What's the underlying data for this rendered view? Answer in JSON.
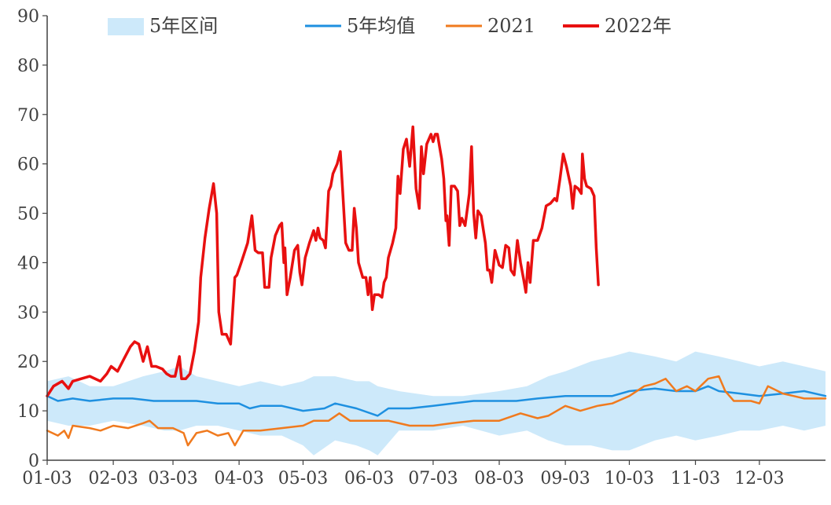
{
  "chart_data": {
    "type": "line",
    "title": "",
    "xlabel": "",
    "ylabel": "",
    "ylim": [
      0,
      90
    ],
    "yticks": [
      0,
      10,
      20,
      30,
      40,
      50,
      60,
      70,
      80,
      90
    ],
    "xlim": [
      0,
      365
    ],
    "xticks": [
      {
        "label": "01-03",
        "day": 0
      },
      {
        "label": "02-03",
        "day": 31
      },
      {
        "label": "03-03",
        "day": 59
      },
      {
        "label": "04-03",
        "day": 90
      },
      {
        "label": "05-03",
        "day": 120
      },
      {
        "label": "06-03",
        "day": 151
      },
      {
        "label": "07-03",
        "day": 181
      },
      {
        "label": "08-03",
        "day": 212
      },
      {
        "label": "09-03",
        "day": 243
      },
      {
        "label": "10-03",
        "day": 273
      },
      {
        "label": "11-03",
        "day": 304
      },
      {
        "label": "12-03",
        "day": 334
      }
    ],
    "grid": false,
    "legend": {
      "position": "top",
      "entries": [
        {
          "name": "5年区间",
          "type": "band",
          "color": "#cde9fa"
        },
        {
          "name": "5年均值",
          "type": "line",
          "color": "#1e90e0"
        },
        {
          "name": "2021",
          "type": "line",
          "color": "#f07a1e"
        },
        {
          "name": "2022年",
          "type": "line",
          "color": "#e81010"
        }
      ]
    },
    "band": {
      "name": "5年区间",
      "color": "#cde9fa",
      "points": [
        [
          0,
          8,
          16
        ],
        [
          10,
          7,
          17
        ],
        [
          20,
          7,
          15
        ],
        [
          31,
          8,
          15
        ],
        [
          45,
          7,
          17
        ],
        [
          55,
          6,
          18
        ],
        [
          62,
          6,
          19
        ],
        [
          70,
          7,
          17
        ],
        [
          80,
          7,
          16
        ],
        [
          90,
          6,
          15
        ],
        [
          100,
          5,
          16
        ],
        [
          110,
          5,
          15
        ],
        [
          120,
          3,
          16
        ],
        [
          125,
          1,
          17
        ],
        [
          135,
          4,
          17
        ],
        [
          145,
          3,
          16
        ],
        [
          151,
          2,
          16
        ],
        [
          155,
          1,
          15
        ],
        [
          165,
          6,
          14
        ],
        [
          181,
          6,
          13
        ],
        [
          195,
          7,
          13
        ],
        [
          212,
          5,
          14
        ],
        [
          225,
          6,
          15
        ],
        [
          235,
          4,
          17
        ],
        [
          243,
          3,
          18
        ],
        [
          255,
          3,
          20
        ],
        [
          265,
          2,
          21
        ],
        [
          273,
          2,
          22
        ],
        [
          285,
          4,
          21
        ],
        [
          295,
          5,
          20
        ],
        [
          304,
          4,
          22
        ],
        [
          315,
          5,
          21
        ],
        [
          325,
          6,
          20
        ],
        [
          334,
          6,
          19
        ],
        [
          345,
          7,
          20
        ],
        [
          355,
          6,
          19
        ],
        [
          365,
          7,
          18
        ]
      ]
    },
    "series": [
      {
        "name": "5年均值",
        "color": "#1e90e0",
        "points": [
          [
            0,
            13
          ],
          [
            5,
            12
          ],
          [
            12,
            12.5
          ],
          [
            20,
            12
          ],
          [
            31,
            12.5
          ],
          [
            40,
            12.5
          ],
          [
            50,
            12
          ],
          [
            59,
            12
          ],
          [
            70,
            12
          ],
          [
            80,
            11.5
          ],
          [
            90,
            11.5
          ],
          [
            95,
            10.5
          ],
          [
            100,
            11
          ],
          [
            110,
            11
          ],
          [
            120,
            10
          ],
          [
            130,
            10.5
          ],
          [
            135,
            11.5
          ],
          [
            145,
            10.5
          ],
          [
            155,
            9
          ],
          [
            160,
            10.5
          ],
          [
            170,
            10.5
          ],
          [
            181,
            11
          ],
          [
            190,
            11.5
          ],
          [
            200,
            12
          ],
          [
            212,
            12
          ],
          [
            220,
            12
          ],
          [
            230,
            12.5
          ],
          [
            243,
            13
          ],
          [
            255,
            13
          ],
          [
            265,
            13
          ],
          [
            273,
            14
          ],
          [
            285,
            14.5
          ],
          [
            295,
            14
          ],
          [
            304,
            14
          ],
          [
            310,
            15
          ],
          [
            315,
            14
          ],
          [
            325,
            13.5
          ],
          [
            334,
            13
          ],
          [
            345,
            13.5
          ],
          [
            355,
            14
          ],
          [
            365,
            13
          ]
        ]
      },
      {
        "name": "2021",
        "color": "#f07a1e",
        "points": [
          [
            0,
            6
          ],
          [
            5,
            5
          ],
          [
            8,
            6
          ],
          [
            10,
            4.5
          ],
          [
            12,
            7
          ],
          [
            20,
            6.5
          ],
          [
            25,
            6
          ],
          [
            31,
            7
          ],
          [
            38,
            6.5
          ],
          [
            45,
            7.5
          ],
          [
            48,
            8
          ],
          [
            52,
            6.5
          ],
          [
            59,
            6.5
          ],
          [
            64,
            5.5
          ],
          [
            66,
            3
          ],
          [
            70,
            5.5
          ],
          [
            75,
            6
          ],
          [
            80,
            5
          ],
          [
            85,
            5.5
          ],
          [
            88,
            3
          ],
          [
            92,
            6
          ],
          [
            100,
            6
          ],
          [
            110,
            6.5
          ],
          [
            120,
            7
          ],
          [
            125,
            8
          ],
          [
            132,
            8
          ],
          [
            137,
            9.5
          ],
          [
            142,
            8
          ],
          [
            151,
            8
          ],
          [
            160,
            8
          ],
          [
            170,
            7
          ],
          [
            181,
            7
          ],
          [
            190,
            7.5
          ],
          [
            200,
            8
          ],
          [
            212,
            8
          ],
          [
            222,
            9.5
          ],
          [
            230,
            8.5
          ],
          [
            235,
            9
          ],
          [
            243,
            11
          ],
          [
            250,
            10
          ],
          [
            258,
            11
          ],
          [
            265,
            11.5
          ],
          [
            273,
            13
          ],
          [
            280,
            15
          ],
          [
            285,
            15.5
          ],
          [
            290,
            16.5
          ],
          [
            295,
            14
          ],
          [
            300,
            15
          ],
          [
            304,
            14
          ],
          [
            310,
            16.5
          ],
          [
            315,
            17
          ],
          [
            318,
            14
          ],
          [
            322,
            12
          ],
          [
            330,
            12
          ],
          [
            334,
            11.5
          ],
          [
            338,
            15
          ],
          [
            345,
            13.5
          ],
          [
            350,
            13
          ],
          [
            355,
            12.5
          ],
          [
            365,
            12.5
          ]
        ]
      },
      {
        "name": "2022年",
        "color": "#e81010",
        "points": [
          [
            0,
            13
          ],
          [
            3,
            15
          ],
          [
            7,
            16
          ],
          [
            10,
            14.5
          ],
          [
            12,
            16
          ],
          [
            16,
            16.5
          ],
          [
            20,
            17
          ],
          [
            25,
            16
          ],
          [
            28,
            17.5
          ],
          [
            30,
            19
          ],
          [
            33,
            18
          ],
          [
            36,
            20.5
          ],
          [
            39,
            23
          ],
          [
            41,
            24
          ],
          [
            43,
            23.5
          ],
          [
            45,
            20
          ],
          [
            47,
            23
          ],
          [
            49,
            19
          ],
          [
            51,
            19
          ],
          [
            54,
            18.5
          ],
          [
            56,
            17.5
          ],
          [
            58,
            17
          ],
          [
            60,
            17
          ],
          [
            62,
            21
          ],
          [
            63,
            16.5
          ],
          [
            65,
            16.5
          ],
          [
            67,
            17.5
          ],
          [
            69,
            22
          ],
          [
            71,
            28
          ],
          [
            72,
            37
          ],
          [
            74,
            45
          ],
          [
            76,
            51
          ],
          [
            78,
            56
          ],
          [
            79.5,
            50
          ],
          [
            80.5,
            30
          ],
          [
            82,
            25.5
          ],
          [
            84,
            25.5
          ],
          [
            86,
            23.5
          ],
          [
            88,
            37
          ],
          [
            89,
            37.5
          ],
          [
            91,
            40
          ],
          [
            94,
            44
          ],
          [
            96,
            49.5
          ],
          [
            97.5,
            42.5
          ],
          [
            99,
            42
          ],
          [
            101,
            42
          ],
          [
            102,
            35
          ],
          [
            104,
            35
          ],
          [
            105,
            41
          ],
          [
            107,
            45.5
          ],
          [
            109,
            47.5
          ],
          [
            110,
            48
          ],
          [
            111,
            40
          ],
          [
            111.5,
            43
          ],
          [
            112.5,
            33.5
          ],
          [
            114,
            37
          ],
          [
            116,
            42.5
          ],
          [
            117.5,
            43.5
          ],
          [
            118.5,
            38
          ],
          [
            119.5,
            35.5
          ],
          [
            121,
            41
          ],
          [
            123,
            44
          ],
          [
            125,
            46.5
          ],
          [
            126,
            44.5
          ],
          [
            127,
            47
          ],
          [
            128,
            45
          ],
          [
            129.5,
            44.5
          ],
          [
            130.5,
            43
          ],
          [
            132,
            54.5
          ],
          [
            133,
            55.5
          ],
          [
            134,
            58
          ],
          [
            136,
            60
          ],
          [
            137.5,
            62.5
          ],
          [
            138.5,
            55
          ],
          [
            140,
            44
          ],
          [
            141.5,
            42.5
          ],
          [
            143,
            42.5
          ],
          [
            144,
            51
          ],
          [
            145,
            47
          ],
          [
            146,
            40
          ],
          [
            148,
            37
          ],
          [
            149.5,
            37
          ],
          [
            150.5,
            33.5
          ],
          [
            151.5,
            37
          ],
          [
            152.5,
            30.5
          ],
          [
            153.5,
            33.5
          ],
          [
            155.5,
            33.5
          ],
          [
            157,
            33
          ],
          [
            158,
            36
          ],
          [
            159,
            37
          ],
          [
            160,
            41
          ],
          [
            162,
            44
          ],
          [
            163.5,
            47
          ],
          [
            164.5,
            57.5
          ],
          [
            165.5,
            54
          ],
          [
            167,
            63
          ],
          [
            168.5,
            65
          ],
          [
            170,
            59.5
          ],
          [
            171.5,
            67.5
          ],
          [
            173,
            55
          ],
          [
            174.5,
            51
          ],
          [
            175.5,
            63.5
          ],
          [
            176.5,
            58
          ],
          [
            178,
            64
          ],
          [
            180,
            66
          ],
          [
            181,
            64.5
          ],
          [
            182,
            66
          ],
          [
            183,
            66
          ],
          [
            185,
            61
          ],
          [
            186,
            57
          ],
          [
            187,
            48.5
          ],
          [
            187.5,
            49.5
          ],
          [
            188.5,
            43.5
          ],
          [
            189.5,
            55.5
          ],
          [
            191,
            55.5
          ],
          [
            192.5,
            54.5
          ],
          [
            193.5,
            47.5
          ],
          [
            194.5,
            49
          ],
          [
            196,
            47.5
          ],
          [
            198,
            54
          ],
          [
            199,
            63.5
          ],
          [
            200,
            50
          ],
          [
            201,
            45
          ],
          [
            202,
            50.5
          ],
          [
            203.5,
            49.5
          ],
          [
            205.5,
            44
          ],
          [
            206.5,
            38.5
          ],
          [
            207.5,
            38.5
          ],
          [
            208.5,
            36
          ],
          [
            210,
            42.5
          ],
          [
            212,
            39.5
          ],
          [
            213.5,
            39
          ],
          [
            215,
            43.5
          ],
          [
            216.5,
            43
          ],
          [
            217.5,
            38.5
          ],
          [
            219,
            37.5
          ],
          [
            220.5,
            44.5
          ],
          [
            222,
            40
          ],
          [
            223.5,
            36.5
          ],
          [
            224.5,
            34
          ],
          [
            225.5,
            40
          ],
          [
            226.5,
            36
          ],
          [
            228,
            44.5
          ],
          [
            230,
            44.5
          ],
          [
            232,
            47
          ],
          [
            234,
            51.5
          ],
          [
            236,
            52
          ],
          [
            238,
            53
          ],
          [
            239,
            52.5
          ],
          [
            240.5,
            57
          ],
          [
            242,
            62
          ],
          [
            243.5,
            59.5
          ],
          [
            245.5,
            55.5
          ],
          [
            246.5,
            51
          ],
          [
            247.5,
            55.5
          ],
          [
            249,
            55
          ],
          [
            250.5,
            54
          ],
          [
            251,
            62
          ],
          [
            252,
            57
          ],
          [
            253,
            55.5
          ],
          [
            255,
            55
          ],
          [
            256.5,
            53.5
          ],
          [
            257.5,
            43
          ],
          [
            258.5,
            35.5
          ]
        ]
      }
    ]
  }
}
